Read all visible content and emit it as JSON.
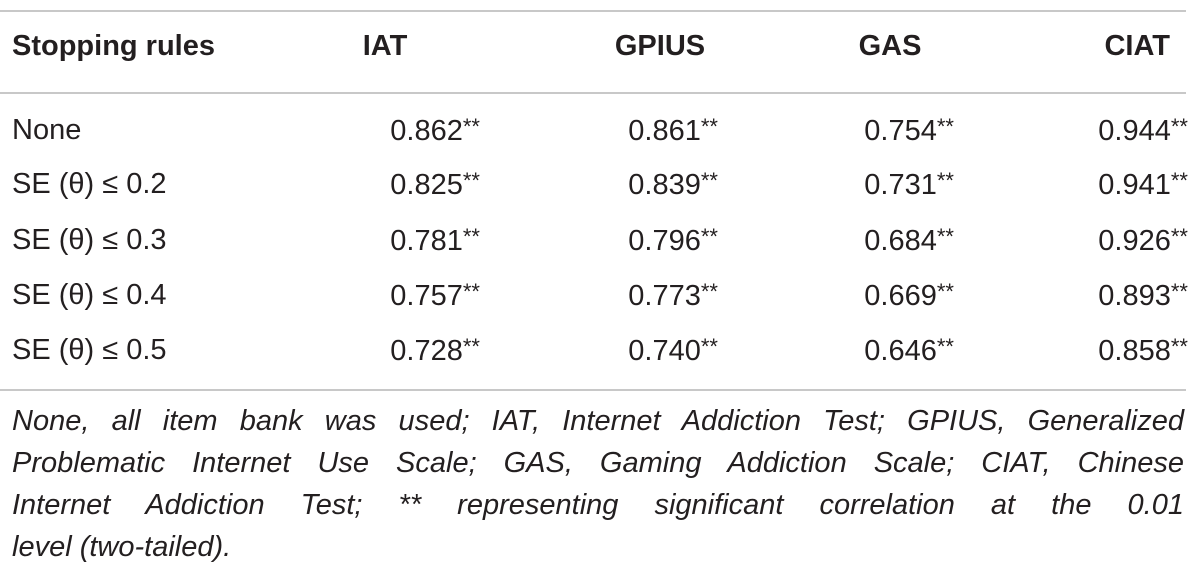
{
  "table": {
    "headers": [
      "Stopping rules",
      "IAT",
      "GPIUS",
      "GAS",
      "CIAT"
    ],
    "rows": [
      {
        "rule": "None",
        "values": [
          "0.862",
          "0.861",
          "0.754",
          "0.944"
        ]
      },
      {
        "rule": "SE (θ) ≤ 0.2",
        "values": [
          "0.825",
          "0.839",
          "0.731",
          "0.941"
        ]
      },
      {
        "rule": "SE (θ) ≤ 0.3",
        "values": [
          "0.781",
          "0.796",
          "0.684",
          "0.926"
        ]
      },
      {
        "rule": "SE (θ) ≤ 0.4",
        "values": [
          "0.757",
          "0.773",
          "0.669",
          "0.893"
        ]
      },
      {
        "rule": "SE (θ) ≤ 0.5",
        "values": [
          "0.728",
          "0.740",
          "0.646",
          "0.858"
        ]
      }
    ],
    "significance_marker": "**"
  },
  "footnote": {
    "lines": [
      "None, all item bank was used; IAT, Internet Addiction Test; GPIUS, Generalized",
      "Problematic Internet Use Scale; GAS, Gaming Addiction Scale; CIAT, Chinese",
      "Internet Addiction Test; ** representing significant correlation at the 0.01",
      "level (two-tailed)."
    ]
  }
}
